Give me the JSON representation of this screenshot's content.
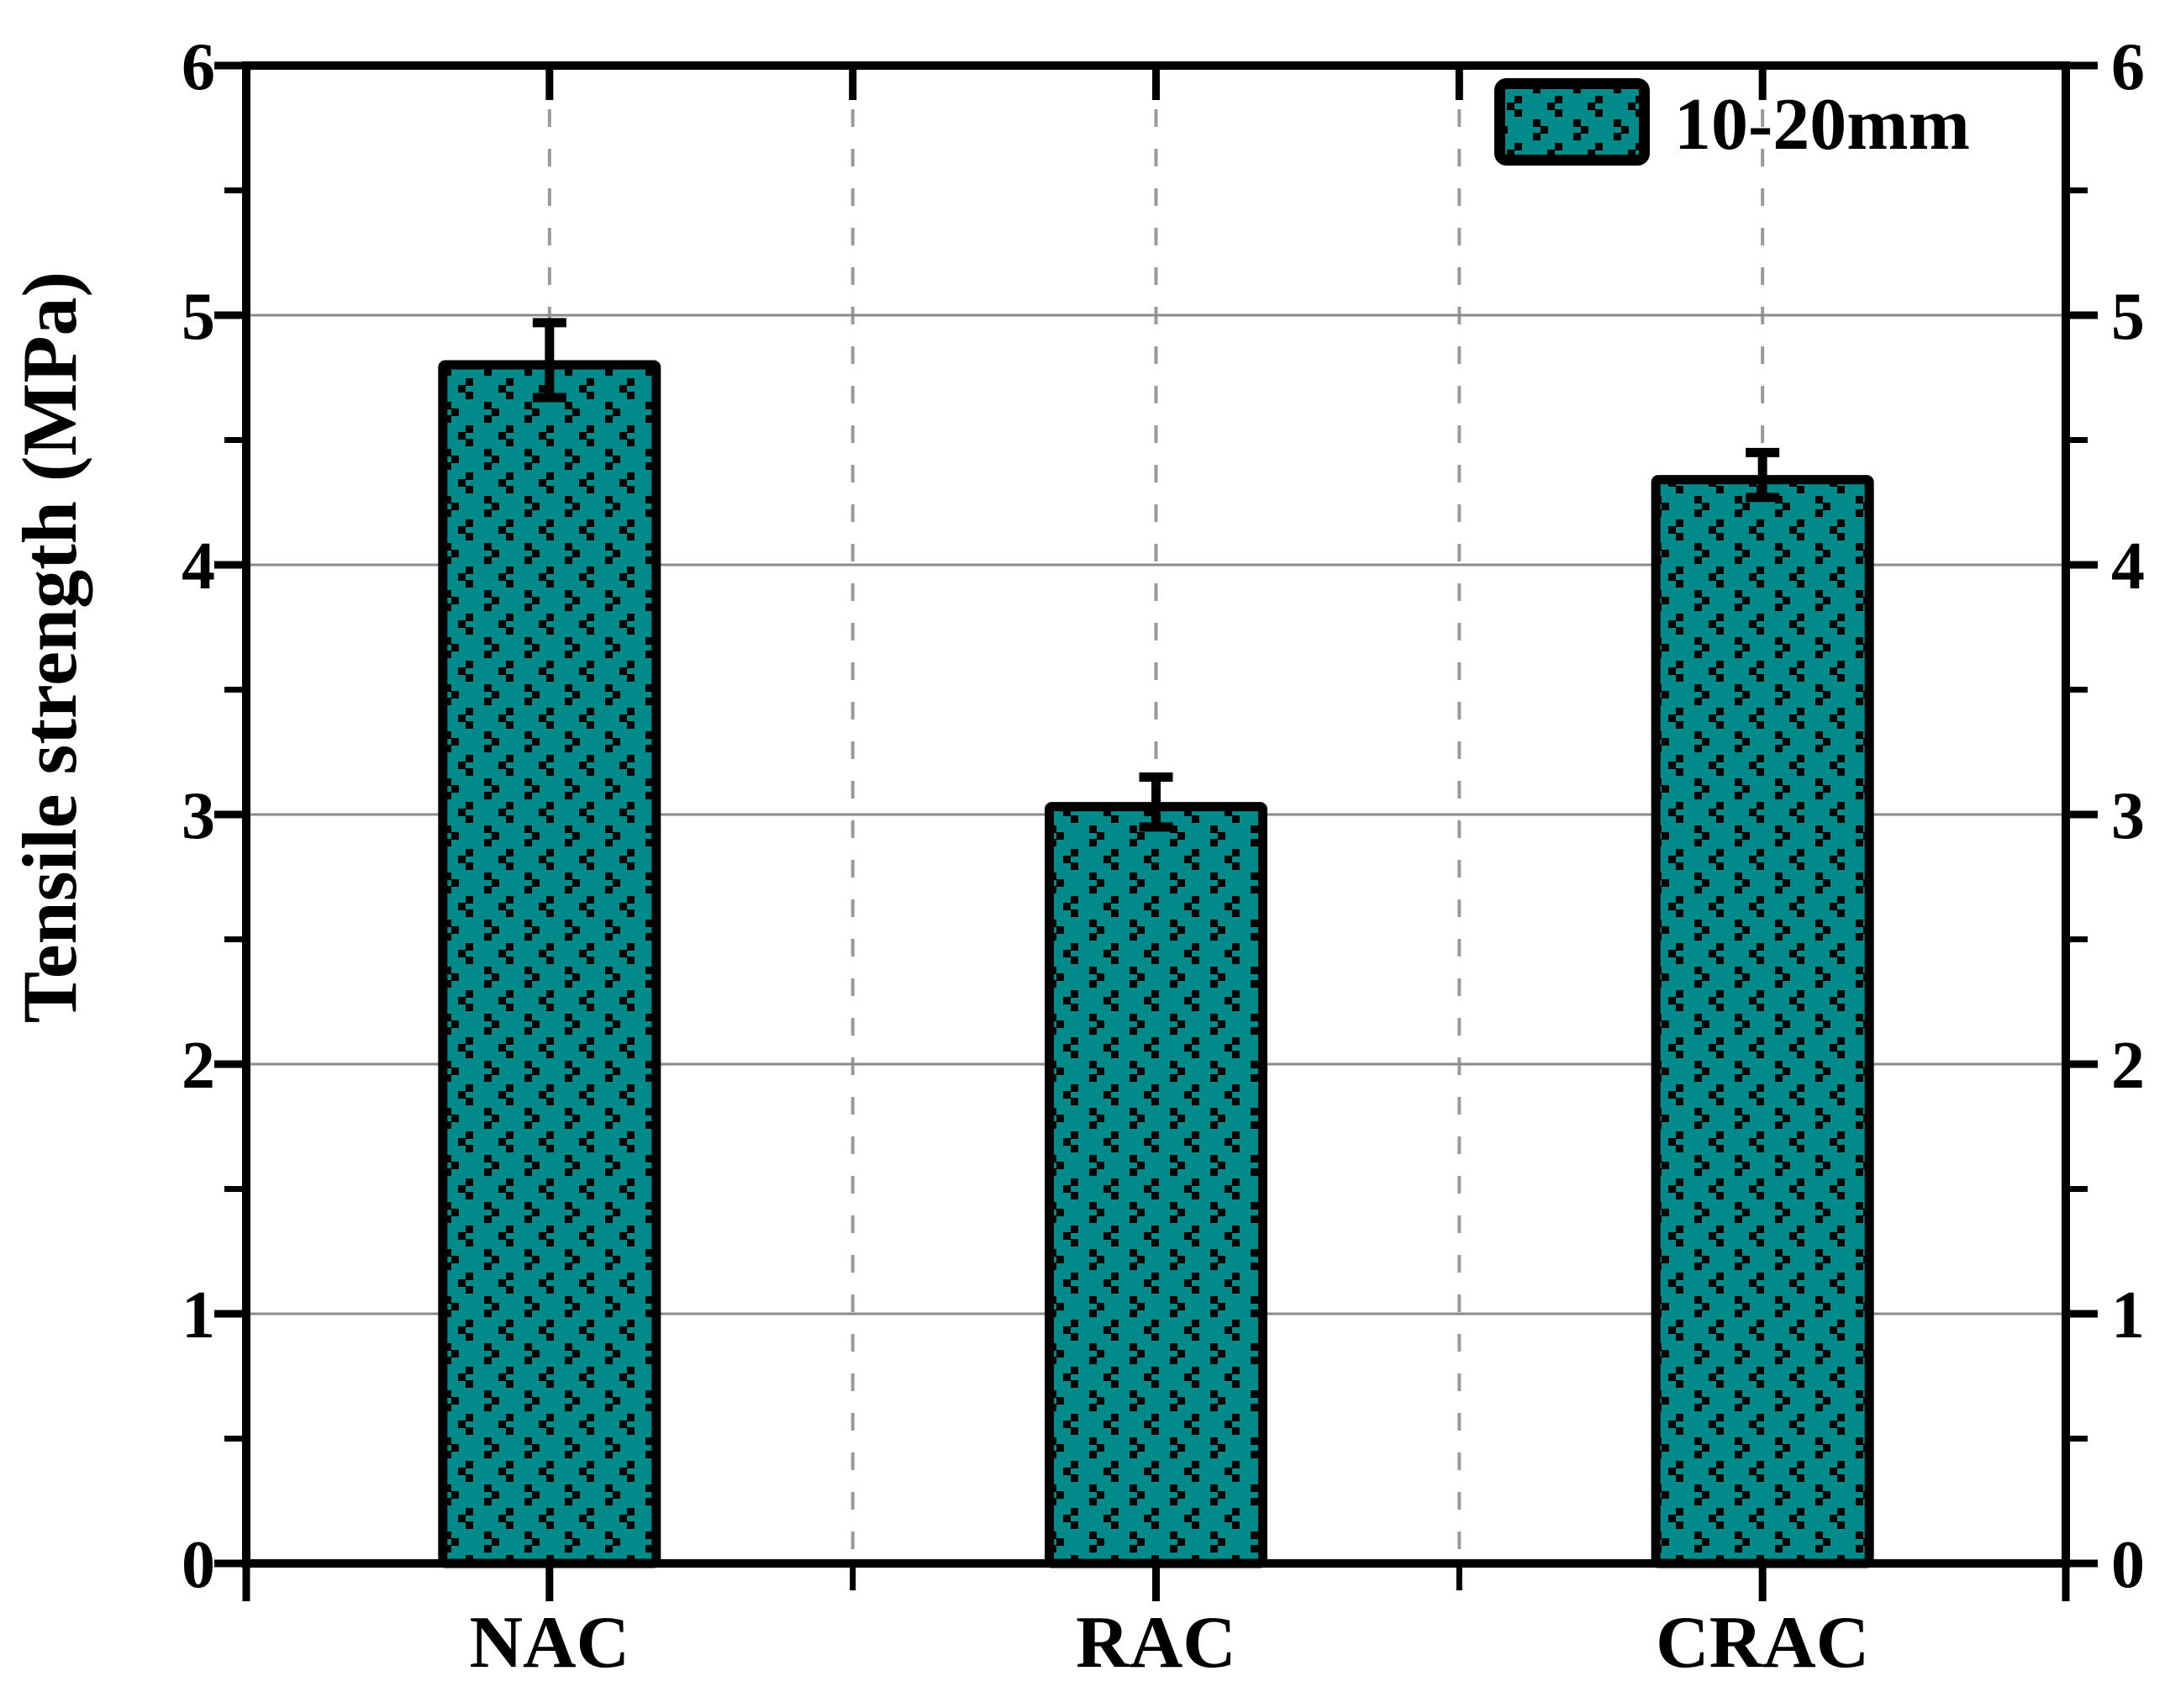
{
  "chart_data": {
    "type": "bar",
    "categories": [
      "NAC",
      "RAC",
      "CRAC"
    ],
    "series": [
      {
        "name": "10-20mm",
        "values": [
          4.82,
          3.05,
          4.36
        ],
        "errors": [
          0.15,
          0.1,
          0.09
        ]
      }
    ],
    "series_label": "10-20mm",
    "title": "",
    "xlabel": "",
    "ylabel": "Tensile strength (MPa)",
    "ylim": [
      0,
      6
    ],
    "yticks": [
      0,
      1,
      2,
      3,
      4,
      5,
      6
    ],
    "ytick_labels": [
      "0",
      "1",
      "2",
      "3",
      "4",
      "5",
      "6"
    ],
    "minor_tick_interval": 0.5,
    "right_axis_mirrored_labels": true,
    "grid_horizontal": "solid",
    "grid_vertical": "dashed",
    "legend_position": "top-right",
    "bar_color": "#008a8a",
    "bar_hatch": "chevron-arrow-pattern",
    "bar_outline_color": "#000000",
    "gridline_color": "#8a8a8a",
    "dashed_gridline_color": "#9a9a9a"
  }
}
